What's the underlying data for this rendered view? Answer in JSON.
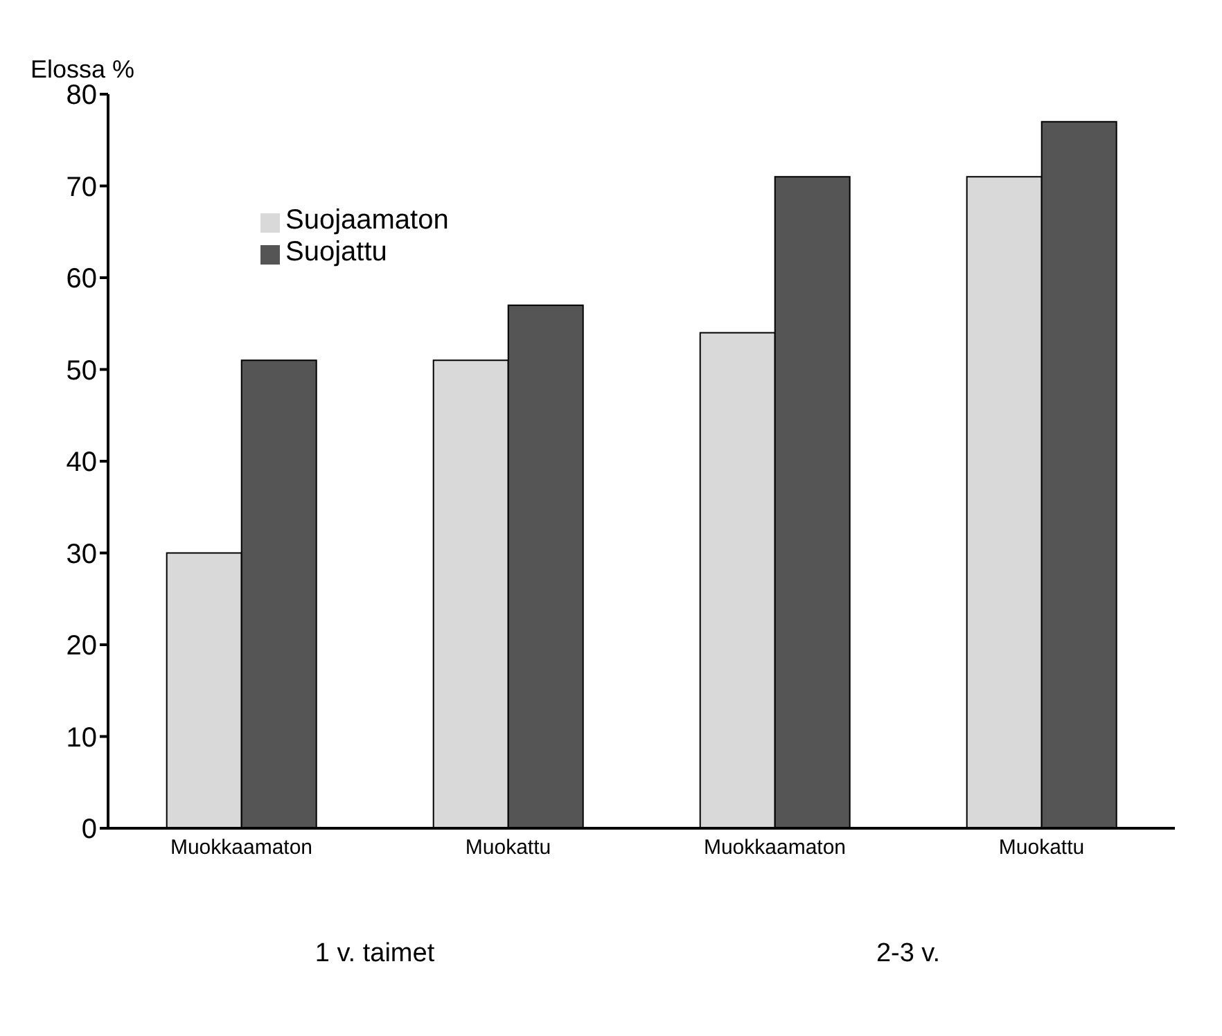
{
  "chart_data": {
    "type": "bar",
    "ylabel": "Elossa %",
    "categories": [
      "Muokkaamaton",
      "Muokattu",
      "Muokkaamaton",
      "Muokattu"
    ],
    "series": [
      {
        "name": "Suojaamaton",
        "color": "#d9d9d9",
        "values": [
          30,
          51,
          54,
          71
        ]
      },
      {
        "name": "Suojattu",
        "color": "#555555",
        "values": [
          51,
          57,
          71,
          77
        ]
      }
    ],
    "ylim": [
      0,
      80
    ],
    "yticks": [
      0,
      10,
      20,
      30,
      40,
      50,
      60,
      70,
      80
    ],
    "grid": false,
    "legend": "top left",
    "annotations": [
      "1 v. taimet",
      "2-3 v."
    ]
  }
}
